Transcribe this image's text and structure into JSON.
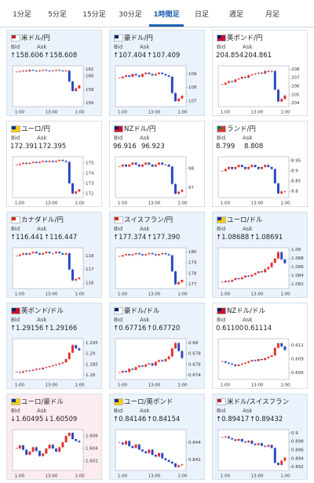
{
  "tabs": [
    "1分足",
    "5分足",
    "15分足",
    "30分足",
    "1時間足",
    "日足",
    "週足",
    "月足"
  ],
  "active_tab": 4,
  "bid_label": "Bid",
  "ask_label": "Ask",
  "time_labels": [
    "1:00",
    "13:00",
    "1:00"
  ],
  "up_color": "#e0302c",
  "down_color": "#2a46c0",
  "state_colors": {
    "up": "#eaf3fc",
    "down": "#fdecef",
    "flat": "#ffffff"
  },
  "cards": [
    {
      "name": "米ドル/円",
      "state": "up",
      "flag_colors": [
        "#b22234",
        "#ffffff"
      ],
      "bid": "↑158.606",
      "ask": "↑158.608",
      "chart": {
        "ylim": [
          155.5,
          161.5
        ],
        "yticks": [
          156,
          158,
          160,
          161
        ],
        "close": [
          160.6,
          160.7,
          160.8,
          160.7,
          160.9,
          160.8,
          160.7,
          160.8,
          160.9,
          160.8,
          160.7,
          160.8,
          160.9,
          160.8,
          160.7,
          160.8,
          159.2,
          157.8,
          158.2,
          158.6
        ]
      }
    },
    {
      "name": "豪ドル/円",
      "state": "up",
      "flag_colors": [
        "#012169",
        "#ffffff"
      ],
      "bid": "↑107.404",
      "ask": "↑107.409",
      "chart": {
        "ylim": [
          106.6,
          109.6
        ],
        "yticks": [
          107,
          108,
          109
        ],
        "close": [
          108.7,
          108.8,
          108.9,
          108.8,
          109.0,
          108.9,
          108.8,
          109.0,
          109.1,
          109.0,
          108.9,
          109.0,
          109.1,
          109.0,
          108.9,
          108.8,
          107.6,
          107.0,
          107.2,
          107.4
        ]
      }
    },
    {
      "name": "英ポンド/円",
      "state": "flat",
      "flag_colors": [
        "#012169",
        "#c8102e"
      ],
      "bid": "204.854",
      "ask": "204.861",
      "chart": {
        "ylim": [
          203.6,
          208.4
        ],
        "yticks": [
          204,
          205,
          206,
          207,
          208
        ],
        "close": [
          206.2,
          206.4,
          206.6,
          206.5,
          206.8,
          206.9,
          207.1,
          207.0,
          207.3,
          207.4,
          207.5,
          207.6,
          207.5,
          207.8,
          207.7,
          207.8,
          205.6,
          204.2,
          204.5,
          204.9
        ]
      }
    },
    {
      "name": "ユーロ/円",
      "state": "flat",
      "flag_colors": [
        "#003399",
        "#ffcc00"
      ],
      "bid": "172.391",
      "ask": "172.395",
      "chart": {
        "ylim": [
          171.6,
          175.6
        ],
        "yticks": [
          172,
          173,
          174,
          175
        ],
        "close": [
          174.8,
          174.9,
          175.0,
          174.9,
          175.0,
          175.1,
          175.0,
          175.1,
          175.2,
          175.1,
          175.2,
          175.1,
          175.2,
          175.3,
          175.2,
          175.1,
          173.0,
          172.0,
          172.2,
          172.4
        ]
      }
    },
    {
      "name": "NZドル/円",
      "state": "flat",
      "flag_colors": [
        "#012169",
        "#c8102e"
      ],
      "bid": "96.916",
      "ask": "96.923",
      "chart": {
        "ylim": [
          96.5,
          98.6
        ],
        "yticks": [
          97,
          98
        ],
        "close": [
          98.1,
          98.2,
          98.1,
          98.2,
          98.3,
          98.2,
          98.1,
          98.2,
          98.3,
          98.2,
          98.1,
          98.2,
          98.3,
          98.2,
          98.2,
          98.1,
          97.2,
          96.7,
          96.8,
          96.9
        ]
      }
    },
    {
      "name": "ランド/円",
      "state": "flat",
      "flag_colors": [
        "#007a4d",
        "#de3831"
      ],
      "bid": "8.799",
      "ask": "8.808",
      "chart": {
        "ylim": [
          8.77,
          8.97
        ],
        "yticks": [
          8.8,
          8.85,
          8.9,
          8.95
        ],
        "close": [
          8.9,
          8.91,
          8.92,
          8.91,
          8.92,
          8.93,
          8.92,
          8.91,
          8.92,
          8.93,
          8.92,
          8.91,
          8.92,
          8.93,
          8.92,
          8.91,
          8.84,
          8.79,
          8.8,
          8.8
        ]
      }
    },
    {
      "name": "カナダドル/円",
      "state": "up",
      "flag_colors": [
        "#d52b1e",
        "#ffffff"
      ],
      "bid": "↑116.441",
      "ask": "↑116.447",
      "chart": {
        "ylim": [
          115.6,
          118.6
        ],
        "yticks": [
          116,
          117,
          118
        ],
        "close": [
          118.0,
          118.1,
          118.2,
          118.1,
          118.2,
          118.3,
          118.2,
          118.1,
          118.2,
          118.3,
          118.2,
          118.2,
          118.3,
          118.2,
          118.1,
          118.2,
          117.0,
          116.2,
          116.3,
          116.4
        ]
      }
    },
    {
      "name": "スイスフラン/円",
      "state": "up",
      "flag_colors": [
        "#d52b1e",
        "#ffffff"
      ],
      "bid": "↑177.374",
      "ask": "↑177.390",
      "chart": {
        "ylim": [
          176.6,
          180.4
        ],
        "yticks": [
          177,
          178,
          179,
          180
        ],
        "close": [
          179.6,
          179.7,
          179.8,
          179.7,
          179.8,
          179.9,
          179.8,
          179.7,
          179.8,
          179.9,
          179.8,
          179.7,
          179.8,
          179.9,
          179.8,
          179.7,
          178.2,
          177.0,
          177.2,
          177.4
        ]
      }
    },
    {
      "name": "ユーロ/ドル",
      "state": "up",
      "flag_colors": [
        "#003399",
        "#ffcc00"
      ],
      "bid": "↑1.08688",
      "ask": "↑1.08691",
      "chart": {
        "ylim": [
          1.081,
          1.0905
        ],
        "yticks": [
          1.082,
          1.084,
          1.086,
          1.088,
          1.09
        ],
        "close": [
          1.0825,
          1.0828,
          1.0826,
          1.083,
          1.0834,
          1.0832,
          1.0836,
          1.084,
          1.0838,
          1.0842,
          1.0846,
          1.085,
          1.0848,
          1.0855,
          1.086,
          1.087,
          1.088,
          1.0895,
          1.0878,
          1.0869
        ]
      }
    },
    {
      "name": "英ポンド/ドル",
      "state": "up",
      "flag_colors": [
        "#012169",
        "#c8102e"
      ],
      "bid": "↑1.29156",
      "ask": "↑1.29166",
      "chart": {
        "ylim": [
          1.278,
          1.297
        ],
        "yticks": [
          1.28,
          1.285,
          1.29,
          1.295
        ],
        "close": [
          1.2815,
          1.2812,
          1.2818,
          1.2822,
          1.282,
          1.2825,
          1.283,
          1.2828,
          1.2835,
          1.2838,
          1.2842,
          1.2846,
          1.285,
          1.2855,
          1.286,
          1.2875,
          1.2905,
          1.294,
          1.2925,
          1.2916
        ]
      }
    },
    {
      "name": "豪ドル/ドル",
      "state": "up",
      "flag_colors": [
        "#012169",
        "#ffffff"
      ],
      "bid": "↑0.67716",
      "ask": "↑0.67720",
      "chart": {
        "ylim": [
          0.6732,
          0.6808
        ],
        "yticks": [
          0.674,
          0.676,
          0.678,
          0.68
        ],
        "close": [
          0.6745,
          0.6748,
          0.6746,
          0.6752,
          0.675,
          0.6755,
          0.6758,
          0.6756,
          0.676,
          0.6762,
          0.6758,
          0.6765,
          0.6768,
          0.6766,
          0.677,
          0.6775,
          0.679,
          0.68,
          0.6785,
          0.6772
        ]
      }
    },
    {
      "name": "NZドル/ドル",
      "state": "flat",
      "flag_colors": [
        "#012169",
        "#c8102e"
      ],
      "bid": "0.61100",
      "ask": "0.61114",
      "chart": {
        "ylim": [
          0.6045,
          0.6135
        ],
        "yticks": [
          0.606,
          0.609,
          0.612
        ],
        "close": [
          0.6085,
          0.6082,
          0.608,
          0.6078,
          0.6075,
          0.6078,
          0.608,
          0.6082,
          0.6085,
          0.6088,
          0.6086,
          0.609,
          0.6088,
          0.6092,
          0.6095,
          0.6098,
          0.6115,
          0.6125,
          0.6118,
          0.611
        ]
      }
    },
    {
      "name": "ユーロ/豪ドル",
      "state": "down",
      "flag_colors": [
        "#003399",
        "#ffcc00"
      ],
      "bid": "↓1.60495",
      "ask": "↓1.60509",
      "chart": {
        "ylim": [
          1.6005,
          1.607
        ],
        "yticks": [
          1.602,
          1.604,
          1.606
        ],
        "close": [
          1.604,
          1.6045,
          1.6038,
          1.603,
          1.6035,
          1.6042,
          1.6036,
          1.6028,
          1.6032,
          1.604,
          1.6046,
          1.604,
          1.6035,
          1.6042,
          1.605,
          1.606,
          1.6065,
          1.6055,
          1.6052,
          1.605
        ]
      }
    },
    {
      "name": "ユーロ/英ポンド",
      "state": "up",
      "flag_colors": [
        "#003399",
        "#ffcc00"
      ],
      "bid": "↑0.84146",
      "ask": "↑0.84154",
      "chart": {
        "ylim": [
          0.8408,
          0.8455
        ],
        "yticks": [
          0.842,
          0.844
        ],
        "close": [
          0.844,
          0.8438,
          0.8442,
          0.8436,
          0.8434,
          0.8438,
          0.8432,
          0.843,
          0.8428,
          0.8432,
          0.8426,
          0.8424,
          0.8428,
          0.8422,
          0.842,
          0.8418,
          0.8416,
          0.8412,
          0.8414,
          0.8415
        ]
      }
    },
    {
      "name": "米ドル/スイスフラン",
      "state": "up",
      "flag_colors": [
        "#b22234",
        "#ffffff"
      ],
      "bid": "↑0.89417",
      "ask": "↑0.89432",
      "chart": {
        "ylim": [
          0.8912,
          0.9008
        ],
        "yticks": [
          0.892,
          0.894,
          0.896,
          0.898,
          0.9
        ],
        "close": [
          0.899,
          0.8992,
          0.8988,
          0.8985,
          0.8982,
          0.8986,
          0.898,
          0.8978,
          0.8982,
          0.8975,
          0.8972,
          0.8976,
          0.897,
          0.8968,
          0.8972,
          0.8965,
          0.893,
          0.8925,
          0.8935,
          0.8942
        ]
      }
    }
  ]
}
